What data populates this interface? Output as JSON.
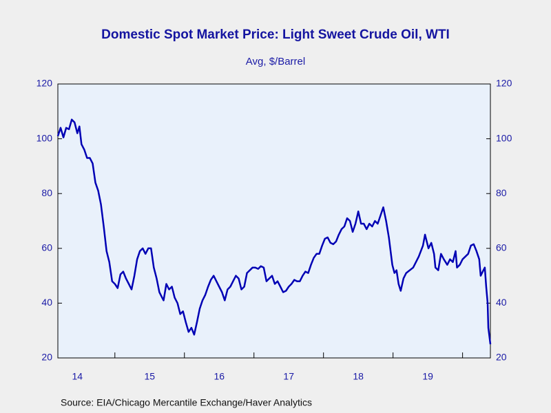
{
  "chart_data": {
    "type": "line",
    "title": "Domestic Spot Market Price: Light Sweet Crude Oil, WTI",
    "subtitle": "Avg, $/Barrel",
    "source": "Source:  EIA/Chicago Mercantile Exchange/Haver Analytics",
    "color": "#0000b4",
    "xlim": [
      2014.18,
      2020.4
    ],
    "xticks": [
      {
        "value": 2014.46,
        "label": "14"
      },
      {
        "value": 2015.5,
        "label": "15"
      },
      {
        "value": 2016.5,
        "label": "16"
      },
      {
        "value": 2017.5,
        "label": "17"
      },
      {
        "value": 2018.5,
        "label": "18"
      },
      {
        "value": 2019.5,
        "label": "19"
      }
    ],
    "year_ticks": [
      2015,
      2016,
      2017,
      2018,
      2019,
      2020
    ],
    "ylim": [
      20,
      120
    ],
    "yticks": [
      20,
      40,
      60,
      80,
      100,
      120
    ],
    "y2lim": [
      20,
      120
    ],
    "y2ticks": [
      20,
      40,
      60,
      80,
      100,
      120
    ],
    "x": [
      2014.18,
      2014.22,
      2014.26,
      2014.3,
      2014.34,
      2014.38,
      2014.42,
      2014.46,
      2014.49,
      2014.52,
      2014.56,
      2014.6,
      2014.64,
      2014.68,
      2014.72,
      2014.76,
      2014.8,
      2014.84,
      2014.88,
      2014.92,
      2014.96,
      2015.0,
      2015.04,
      2015.08,
      2015.12,
      2015.16,
      2015.2,
      2015.24,
      2015.28,
      2015.32,
      2015.36,
      2015.4,
      2015.44,
      2015.48,
      2015.52,
      2015.56,
      2015.6,
      2015.64,
      2015.68,
      2015.7,
      2015.74,
      2015.78,
      2015.82,
      2015.86,
      2015.9,
      2015.94,
      2015.98,
      2016.02,
      2016.06,
      2016.1,
      2016.14,
      2016.18,
      2016.22,
      2016.26,
      2016.3,
      2016.34,
      2016.38,
      2016.42,
      2016.46,
      2016.5,
      2016.54,
      2016.58,
      2016.62,
      2016.66,
      2016.7,
      2016.74,
      2016.78,
      2016.82,
      2016.86,
      2016.9,
      2016.94,
      2016.98,
      2017.02,
      2017.06,
      2017.1,
      2017.14,
      2017.18,
      2017.22,
      2017.26,
      2017.3,
      2017.34,
      2017.38,
      2017.42,
      2017.46,
      2017.5,
      2017.54,
      2017.58,
      2017.62,
      2017.66,
      2017.7,
      2017.74,
      2017.78,
      2017.82,
      2017.86,
      2017.9,
      2017.94,
      2017.98,
      2018.02,
      2018.06,
      2018.1,
      2018.14,
      2018.18,
      2018.22,
      2018.26,
      2018.3,
      2018.34,
      2018.38,
      2018.42,
      2018.46,
      2018.5,
      2018.54,
      2018.58,
      2018.62,
      2018.66,
      2018.7,
      2018.74,
      2018.78,
      2018.82,
      2018.86,
      2018.9,
      2018.94,
      2018.97,
      2018.99,
      2019.02,
      2019.05,
      2019.08,
      2019.11,
      2019.15,
      2019.19,
      2019.29,
      2019.37,
      2019.43,
      2019.46,
      2019.51,
      2019.55,
      2019.59,
      2019.61,
      2019.65,
      2019.69,
      2019.73,
      2019.78,
      2019.82,
      2019.86,
      2019.9,
      2019.92,
      2019.96,
      2020.0,
      2020.04,
      2020.08,
      2020.12,
      2020.16,
      2020.2,
      2020.24,
      2020.26,
      2020.3,
      2020.32,
      2020.34,
      2020.36,
      2020.37,
      2020.4
    ],
    "values": [
      101,
      104,
      100.5,
      104,
      103.5,
      107,
      106,
      102,
      104.5,
      98,
      96,
      93,
      93,
      91,
      84,
      81,
      76,
      68,
      59,
      55,
      48,
      47,
      45.5,
      50.5,
      51.5,
      49,
      47,
      45,
      50,
      56,
      59,
      60,
      58,
      60,
      60,
      53,
      49,
      44,
      42,
      41,
      47,
      45,
      46,
      42,
      40,
      36,
      37,
      33,
      29.5,
      31,
      28.5,
      33,
      38,
      41,
      43,
      46,
      48.5,
      50,
      48,
      46,
      44,
      41,
      45,
      46,
      48,
      50,
      49,
      45,
      46,
      51,
      52,
      53,
      53,
      52.5,
      53.5,
      53,
      48,
      49,
      50,
      47,
      48,
      46,
      44,
      44.5,
      46,
      47,
      48.5,
      48,
      48,
      50,
      51.5,
      51,
      54,
      56.5,
      58,
      58,
      61,
      63.5,
      64,
      62,
      61.5,
      62.5,
      65,
      67,
      68,
      71,
      70,
      66,
      69,
      73.5,
      69,
      69,
      67,
      69,
      68,
      70,
      69,
      72,
      75,
      70,
      64,
      58,
      54,
      51,
      52,
      47,
      44.5,
      49,
      51,
      53,
      57,
      61,
      65,
      60,
      62,
      58,
      53,
      52,
      58,
      56,
      54,
      56,
      55,
      59,
      53,
      54,
      56,
      57,
      58,
      61,
      61.5,
      59,
      56,
      50,
      52,
      53,
      46,
      40,
      31,
      25
    ]
  }
}
